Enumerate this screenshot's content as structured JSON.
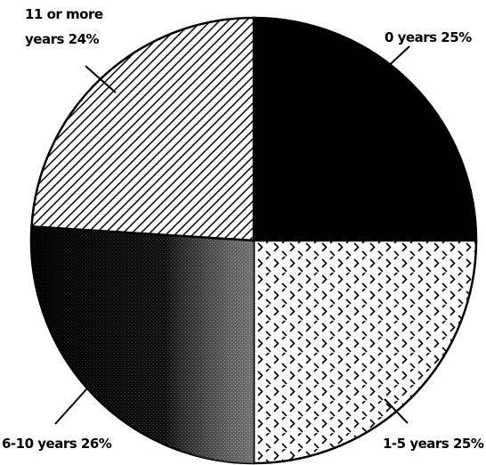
{
  "chart_data": {
    "type": "pie",
    "categories": [
      "0 years",
      "1-5 years",
      "6-10 years",
      "11 or more years"
    ],
    "values": [
      25,
      25,
      26,
      24
    ],
    "value_labels": [
      "25%",
      "25%",
      "26%",
      "24%"
    ],
    "fills": [
      "solid",
      "dashes",
      "stipple",
      "hatch"
    ]
  }
}
